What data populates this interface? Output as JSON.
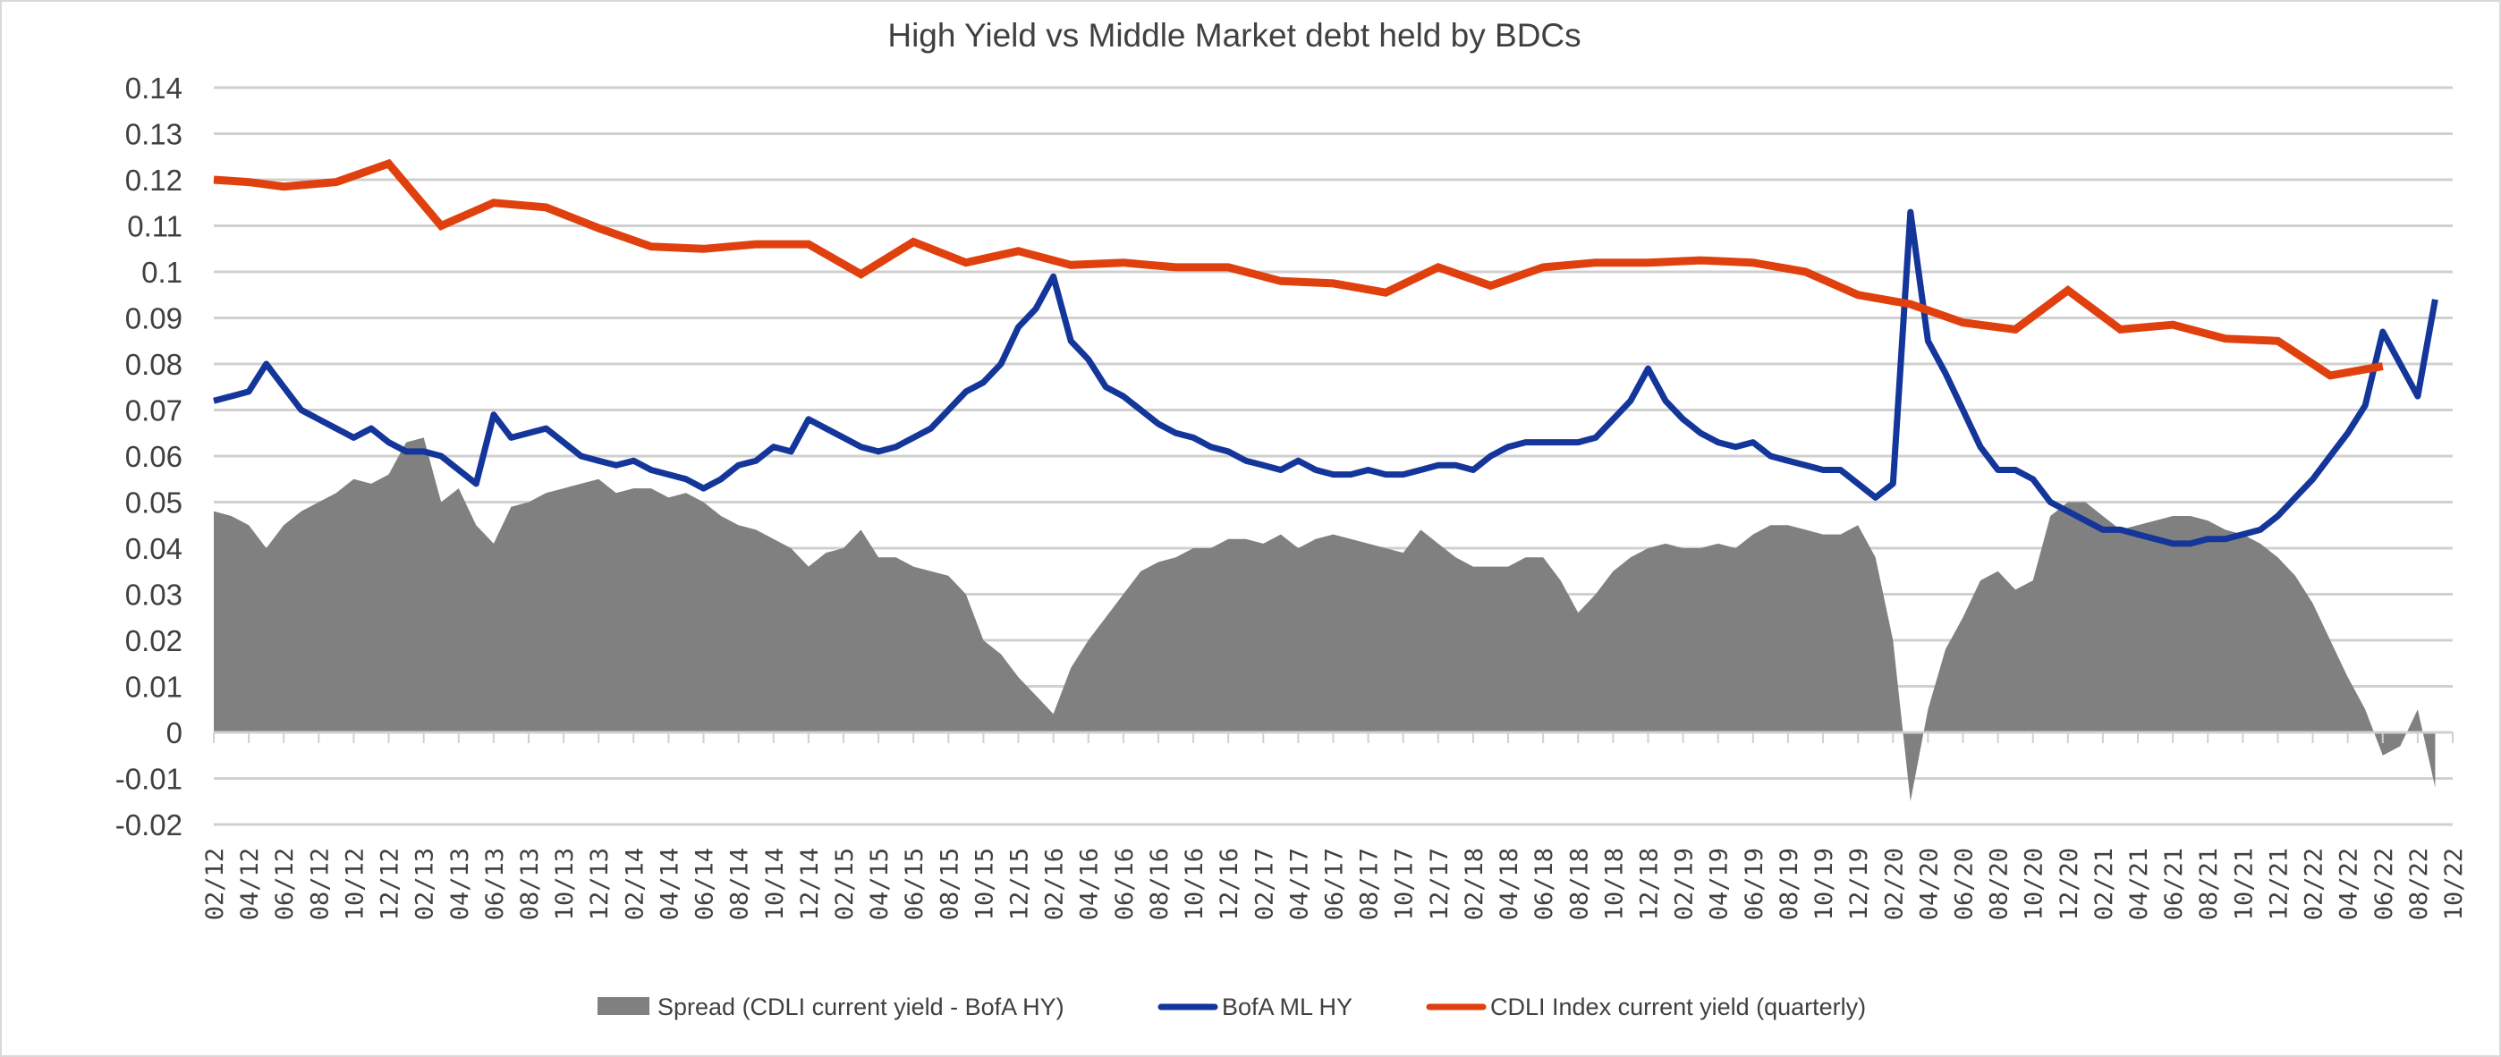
{
  "chart_data": {
    "type": "area+line",
    "title": "High Yield  vs  Middle Market debt held by BDCs",
    "xlabel": "",
    "ylabel": "",
    "ylim": [
      -0.02,
      0.14
    ],
    "y_ticks": [
      "0.14",
      "0.13",
      "0.12",
      "0.11",
      "0.1",
      "0.09",
      "0.08",
      "0.07",
      "0.06",
      "0.05",
      "0.04",
      "0.03",
      "0.02",
      "0.01",
      "0",
      "-0.01",
      "-0.02"
    ],
    "y_tick_values": [
      0.14,
      0.13,
      0.12,
      0.11,
      0.1,
      0.09,
      0.08,
      0.07,
      0.06,
      0.05,
      0.04,
      0.03,
      0.02,
      0.01,
      0,
      -0.01,
      -0.02
    ],
    "x_start": "2012-02",
    "x_months_span": 128,
    "x_tick_labels": [
      "02/12",
      "04/12",
      "06/12",
      "08/12",
      "10/12",
      "12/12",
      "02/13",
      "04/13",
      "06/13",
      "08/13",
      "10/13",
      "12/13",
      "02/14",
      "04/14",
      "06/14",
      "08/14",
      "10/14",
      "12/14",
      "02/15",
      "04/15",
      "06/15",
      "08/15",
      "10/15",
      "12/15",
      "02/16",
      "04/16",
      "06/16",
      "08/16",
      "10/16",
      "12/16",
      "02/17",
      "04/17",
      "06/17",
      "08/17",
      "10/17",
      "12/17",
      "02/18",
      "04/18",
      "06/18",
      "08/18",
      "10/18",
      "12/18",
      "02/19",
      "04/19",
      "06/19",
      "08/19",
      "10/19",
      "12/19",
      "02/20",
      "04/20",
      "06/20",
      "08/20",
      "10/20",
      "12/20",
      "02/21",
      "04/21",
      "06/21",
      "08/21",
      "10/21",
      "12/21",
      "02/22",
      "04/22",
      "06/22",
      "08/22",
      "10/22"
    ],
    "grid": true,
    "legend_position": "bottom",
    "series": [
      {
        "name": "Spread (CDLI current yield - BofA HY)",
        "type": "area",
        "color": "#808080",
        "frequency": "monthly from 2012-02",
        "values": [
          0.048,
          0.047,
          0.045,
          0.04,
          0.045,
          0.048,
          0.05,
          0.052,
          0.055,
          0.054,
          0.056,
          0.063,
          0.064,
          0.05,
          0.053,
          0.045,
          0.041,
          0.049,
          0.05,
          0.052,
          0.053,
          0.054,
          0.055,
          0.052,
          0.053,
          0.053,
          0.051,
          0.052,
          0.05,
          0.047,
          0.045,
          0.044,
          0.042,
          0.04,
          0.036,
          0.039,
          0.04,
          0.044,
          0.038,
          0.038,
          0.036,
          0.035,
          0.034,
          0.03,
          0.02,
          0.017,
          0.012,
          0.008,
          0.004,
          0.014,
          0.02,
          0.025,
          0.03,
          0.035,
          0.037,
          0.038,
          0.04,
          0.04,
          0.042,
          0.042,
          0.041,
          0.043,
          0.04,
          0.042,
          0.043,
          0.042,
          0.041,
          0.04,
          0.039,
          0.044,
          0.041,
          0.038,
          0.036,
          0.036,
          0.036,
          0.038,
          0.038,
          0.033,
          0.026,
          0.03,
          0.035,
          0.038,
          0.04,
          0.041,
          0.04,
          0.04,
          0.041,
          0.04,
          0.043,
          0.045,
          0.045,
          0.044,
          0.043,
          0.043,
          0.045,
          0.038,
          0.02,
          -0.015,
          0.005,
          0.018,
          0.025,
          0.033,
          0.035,
          0.031,
          0.033,
          0.047,
          0.05,
          0.05,
          0.047,
          0.044,
          0.045,
          0.046,
          0.047,
          0.047,
          0.046,
          0.044,
          0.043,
          0.041,
          0.038,
          0.034,
          0.028,
          0.02,
          0.012,
          0.005,
          -0.005,
          -0.003,
          0.005,
          -0.012
        ]
      },
      {
        "name": "BofA ML HY",
        "type": "line",
        "color": "#14359A",
        "frequency": "monthly from 2012-02",
        "values": [
          0.072,
          0.073,
          0.074,
          0.08,
          0.075,
          0.07,
          0.068,
          0.066,
          0.064,
          0.066,
          0.063,
          0.061,
          0.061,
          0.06,
          0.057,
          0.054,
          0.069,
          0.064,
          0.065,
          0.066,
          0.063,
          0.06,
          0.059,
          0.058,
          0.059,
          0.057,
          0.056,
          0.055,
          0.053,
          0.055,
          0.058,
          0.059,
          0.062,
          0.061,
          0.068,
          0.066,
          0.064,
          0.062,
          0.061,
          0.062,
          0.064,
          0.066,
          0.07,
          0.074,
          0.076,
          0.08,
          0.088,
          0.092,
          0.099,
          0.085,
          0.081,
          0.075,
          0.073,
          0.07,
          0.067,
          0.065,
          0.064,
          0.062,
          0.061,
          0.059,
          0.058,
          0.057,
          0.059,
          0.057,
          0.056,
          0.056,
          0.057,
          0.056,
          0.056,
          0.057,
          0.058,
          0.058,
          0.057,
          0.06,
          0.062,
          0.063,
          0.063,
          0.063,
          0.063,
          0.064,
          0.068,
          0.072,
          0.079,
          0.072,
          0.068,
          0.065,
          0.063,
          0.062,
          0.063,
          0.06,
          0.059,
          0.058,
          0.057,
          0.057,
          0.054,
          0.051,
          0.054,
          0.113,
          0.085,
          0.078,
          0.07,
          0.062,
          0.057,
          0.057,
          0.055,
          0.05,
          0.048,
          0.046,
          0.044,
          0.044,
          0.043,
          0.042,
          0.041,
          0.041,
          0.042,
          0.042,
          0.043,
          0.044,
          0.047,
          0.051,
          0.055,
          0.06,
          0.065,
          0.071,
          0.087,
          0.08,
          0.073,
          0.094
        ]
      },
      {
        "name": "CDLI Index current yield (quarterly)",
        "type": "line",
        "color": "#E0400E",
        "points": [
          [
            "2012-02",
            0.12
          ],
          [
            "2012-04",
            0.1195
          ],
          [
            "2012-06",
            0.1185
          ],
          [
            "2012-09",
            0.1195
          ],
          [
            "2012-12",
            0.1235
          ],
          [
            "2013-03",
            0.11
          ],
          [
            "2013-06",
            0.115
          ],
          [
            "2013-09",
            0.114
          ],
          [
            "2013-12",
            0.1095
          ],
          [
            "2014-03",
            0.1055
          ],
          [
            "2014-06",
            0.105
          ],
          [
            "2014-09",
            0.106
          ],
          [
            "2014-12",
            0.106
          ],
          [
            "2015-03",
            0.0995
          ],
          [
            "2015-06",
            0.1065
          ],
          [
            "2015-09",
            0.102
          ],
          [
            "2015-12",
            0.1045
          ],
          [
            "2016-03",
            0.1015
          ],
          [
            "2016-06",
            0.102
          ],
          [
            "2016-09",
            0.101
          ],
          [
            "2016-12",
            0.101
          ],
          [
            "2017-03",
            0.098
          ],
          [
            "2017-06",
            0.0975
          ],
          [
            "2017-09",
            0.0955
          ],
          [
            "2017-12",
            0.101
          ],
          [
            "2018-03",
            0.097
          ],
          [
            "2018-06",
            0.101
          ],
          [
            "2018-09",
            0.102
          ],
          [
            "2018-12",
            0.102
          ],
          [
            "2019-03",
            0.1025
          ],
          [
            "2019-06",
            0.102
          ],
          [
            "2019-09",
            0.1
          ],
          [
            "2019-12",
            0.095
          ],
          [
            "2020-03",
            0.093
          ],
          [
            "2020-06",
            0.089
          ],
          [
            "2020-09",
            0.0875
          ],
          [
            "2020-12",
            0.096
          ],
          [
            "2021-03",
            0.0875
          ],
          [
            "2021-06",
            0.0885
          ],
          [
            "2021-09",
            0.0855
          ],
          [
            "2021-12",
            0.085
          ],
          [
            "2022-03",
            0.0775
          ],
          [
            "2022-06",
            0.0795
          ]
        ]
      }
    ]
  }
}
